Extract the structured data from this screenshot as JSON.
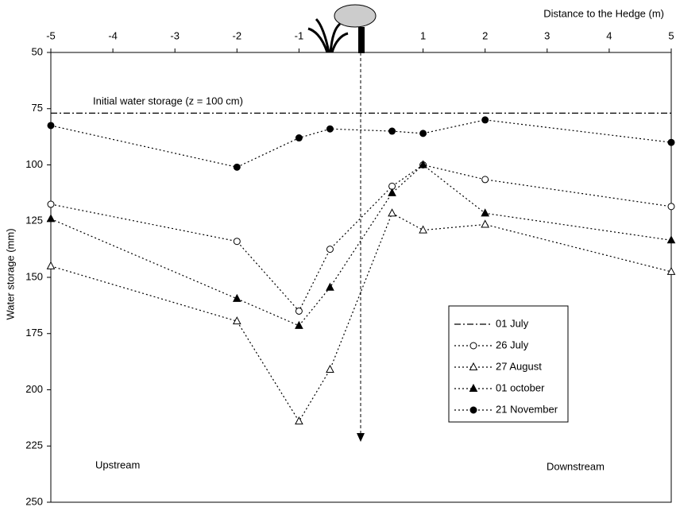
{
  "chart_data": {
    "type": "line",
    "x_axis_label": "Distance to the Hedge (m)",
    "y_axis_label": "Water storage (mm)",
    "x": [
      -5,
      -2,
      -1,
      -0.5,
      0.5,
      1,
      2,
      5
    ],
    "xlim": [
      -5,
      5
    ],
    "xticks": [
      -5,
      -4,
      -3,
      -2,
      -1,
      1,
      2,
      3,
      4,
      5
    ],
    "ylim": [
      50,
      250
    ],
    "yticks": [
      50,
      75,
      100,
      125,
      150,
      175,
      200,
      225,
      250
    ],
    "y_reversed": true,
    "x_axis_position": "top",
    "grid": false,
    "legend_position": "lower right",
    "series": [
      {
        "name": "01 July",
        "color": "#000000",
        "marker": "none",
        "dash": "dash-dot",
        "x": [
          -5,
          5
        ],
        "values": [
          77,
          77
        ]
      },
      {
        "name": "26 July",
        "color": "#000000",
        "marker": "circle-open",
        "dash": "dot",
        "values": [
          117.5,
          134,
          165,
          137.5,
          109.5,
          100,
          106.5,
          118.5
        ]
      },
      {
        "name": "27 August",
        "color": "#000000",
        "marker": "triangle-open",
        "dash": "dot",
        "values": [
          145,
          169.5,
          214,
          191,
          121.5,
          129,
          126.5,
          147.5
        ]
      },
      {
        "name": "01 october",
        "color": "#000000",
        "marker": "triangle-filled",
        "dash": "dot",
        "values": [
          124,
          159.5,
          171.5,
          154.5,
          112.5,
          100,
          121.5,
          133.5
        ]
      },
      {
        "name": "21 November",
        "color": "#000000",
        "marker": "circle-filled",
        "dash": "dot",
        "values": [
          82.5,
          101,
          88,
          84,
          85,
          86,
          80,
          90
        ]
      }
    ],
    "annotations": [
      "Initial water storage (z = 100 cm)",
      "Upstream",
      "Downstream"
    ]
  }
}
